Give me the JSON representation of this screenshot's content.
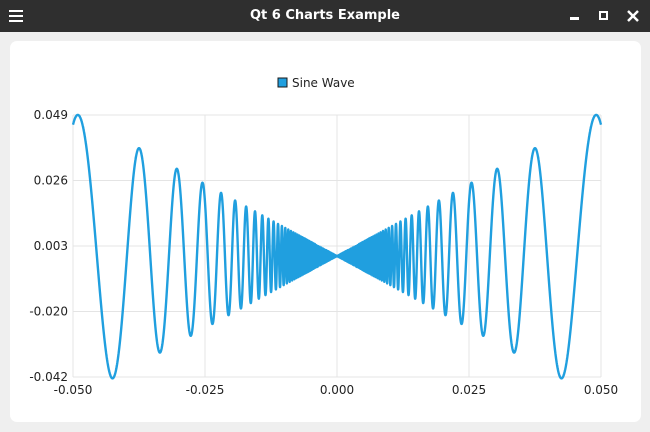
{
  "window": {
    "title": "Qt 6 Charts Example"
  },
  "icons": {
    "menu": "hamburger-icon",
    "minimize": "minimize-icon",
    "maximize": "maximize-icon",
    "close": "close-icon"
  },
  "colors": {
    "series": "#209fdf",
    "titlebar": "#2f2f2f",
    "grid": "#e4e4e4"
  },
  "chart_data": {
    "type": "line",
    "title": "",
    "xlabel": "",
    "ylabel": "",
    "legend": {
      "position": "top-center",
      "entries": [
        "Sine Wave"
      ]
    },
    "grid": true,
    "xlim": [
      -0.05,
      0.05
    ],
    "ylim": [
      -0.042,
      0.049
    ],
    "x_tick_labels": [
      "-0.050",
      "-0.025",
      "0.000",
      "0.025",
      "0.050"
    ],
    "y_tick_labels": [
      "0.049",
      "0.026",
      "0.003",
      "-0.020",
      "-0.042"
    ],
    "series": [
      {
        "name": "Sine Wave",
        "function": "y = x * sin(1/x)",
        "x_range": [
          -0.05,
          0.05
        ]
      }
    ]
  }
}
